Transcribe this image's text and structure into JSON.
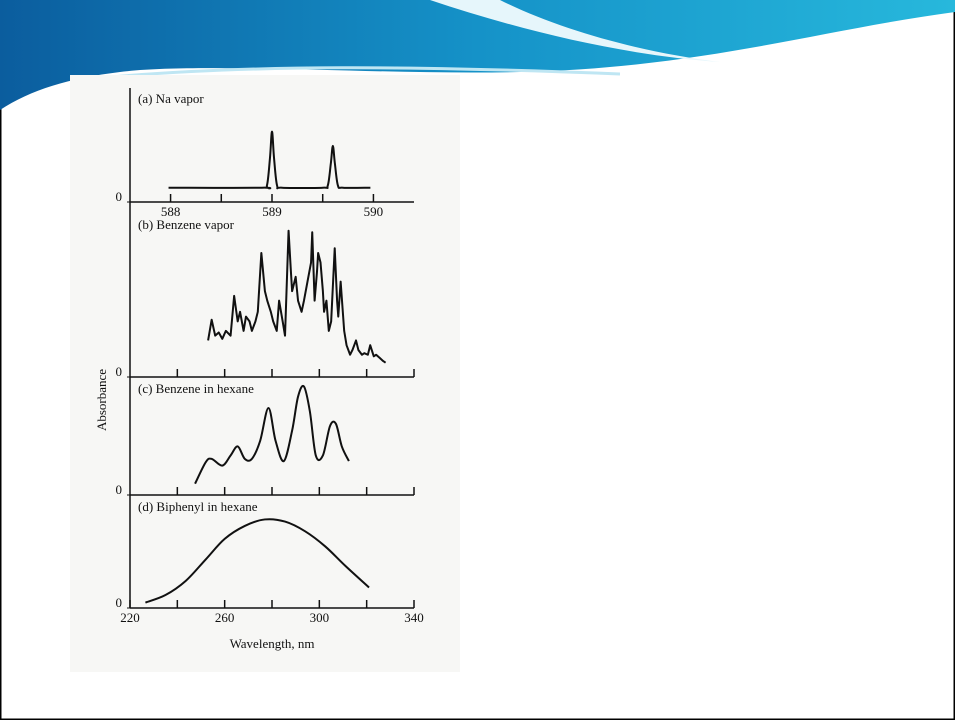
{
  "chart_data": [
    {
      "type": "line",
      "title": "(a) Na vapor",
      "x": [
        587.98,
        588.9,
        588.95,
        588.98,
        589.0,
        589.02,
        589.05,
        589.1,
        589.5,
        589.55,
        589.58,
        589.6,
        589.62,
        589.65,
        589.7,
        589.97
      ],
      "values": [
        13,
        13,
        15,
        40,
        64,
        40,
        15,
        13,
        13,
        15,
        35,
        51,
        35,
        15,
        13,
        13
      ],
      "xlim": [
        587.6,
        590.4
      ],
      "ylim": [
        0,
        100
      ],
      "yticks": [
        0
      ],
      "xticks": [
        588,
        589,
        590
      ],
      "minor_xticks": [
        588.5,
        589.5
      ],
      "smooth": true,
      "color": "#111111"
    },
    {
      "type": "line",
      "title": "(b) Benzene vapor",
      "ylabel": "Absorbance",
      "x": [
        253,
        254.5,
        256,
        257.5,
        259,
        260.5,
        262.5,
        264,
        265.5,
        266.5,
        268,
        269,
        270.5,
        271.5,
        273,
        274,
        275.5,
        277,
        278,
        279.5,
        280.5,
        282,
        283,
        284.5,
        285.5,
        287,
        288,
        288.5,
        290,
        291,
        292.5,
        293.5,
        295,
        296.5,
        297,
        298,
        299,
        299.5,
        300.5,
        301.5,
        302,
        303,
        304,
        305,
        306.5,
        307.5,
        308,
        309,
        310.5,
        311.5,
        313,
        314,
        315.5,
        316.5,
        318,
        319,
        320.5,
        321.5,
        323,
        324,
        325.5,
        327,
        328
      ],
      "values": [
        23,
        36,
        26,
        28,
        24,
        29,
        26,
        51,
        35,
        41,
        29,
        38,
        35,
        29,
        35,
        41,
        78,
        54,
        48,
        41,
        35,
        29,
        48,
        35,
        26,
        92,
        66,
        54,
        63,
        48,
        41,
        48,
        60,
        72,
        91,
        48,
        66,
        78,
        72,
        54,
        41,
        48,
        29,
        35,
        81,
        48,
        38,
        60,
        29,
        20,
        14,
        17,
        23,
        17,
        14,
        15,
        14,
        20,
        13,
        14,
        12,
        10,
        9
      ],
      "xlim": [
        220,
        340
      ],
      "ylim": [
        0,
        100
      ],
      "yticks": [
        0
      ],
      "minor_xticks": [
        240,
        260,
        280,
        300,
        320,
        340
      ],
      "smooth": false,
      "color": "#111111"
    },
    {
      "type": "line",
      "title": "(c) Benzene in hexane",
      "x": [
        247.5,
        252,
        254.5,
        259,
        262.5,
        265.5,
        268.5,
        271.5,
        275,
        278.5,
        281.5,
        285,
        288.5,
        291,
        293.5,
        296,
        298.5,
        301.5,
        304.5,
        307,
        309.5,
        312.5
      ],
      "values": [
        10,
        29,
        32,
        26,
        35,
        43,
        32,
        32,
        48,
        77,
        48,
        30,
        57,
        87,
        96,
        74,
        35,
        35,
        61,
        63,
        43,
        30
      ],
      "xlim": [
        220,
        340
      ],
      "ylim": [
        0,
        100
      ],
      "yticks": [
        0
      ],
      "minor_xticks": [
        240,
        260,
        280,
        300,
        320,
        340
      ],
      "smooth": true,
      "color": "#111111"
    },
    {
      "type": "line",
      "title": "(d) Biphenyl in hexane",
      "xlabel": "Wavelength, nm",
      "x": [
        226.5,
        235,
        243.5,
        252,
        260,
        268.5,
        277,
        285.5,
        294,
        302.5,
        311,
        321
      ],
      "values": [
        5,
        12,
        25,
        45,
        64,
        76,
        82,
        80,
        71,
        57,
        39,
        19
      ],
      "xlim": [
        220,
        340
      ],
      "ylim": [
        0,
        100
      ],
      "yticks": [
        0
      ],
      "xticks": [
        220,
        260,
        300,
        340
      ],
      "minor_xticks": [
        240,
        280,
        320
      ],
      "smooth": true,
      "color": "#111111"
    }
  ]
}
